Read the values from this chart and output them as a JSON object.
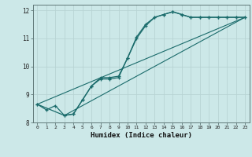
{
  "title": "",
  "xlabel": "Humidex (Indice chaleur)",
  "bg_color": "#cce8e8",
  "grid_color": "#b8d4d4",
  "line_color": "#1a6b6b",
  "xlim": [
    -0.5,
    23.5
  ],
  "ylim": [
    8,
    12.2
  ],
  "yticks": [
    8,
    9,
    10,
    11,
    12
  ],
  "xticks": [
    0,
    1,
    2,
    3,
    4,
    5,
    6,
    7,
    8,
    9,
    10,
    11,
    12,
    13,
    14,
    15,
    16,
    17,
    18,
    19,
    20,
    21,
    22,
    23
  ],
  "line1_x": [
    0,
    1,
    2,
    3,
    4,
    5,
    6,
    7,
    8,
    9,
    10,
    11,
    12,
    13,
    14,
    15,
    16,
    17,
    18,
    19,
    20,
    21,
    22,
    23
  ],
  "line1_y": [
    8.65,
    8.45,
    8.6,
    8.25,
    8.3,
    8.8,
    9.3,
    9.55,
    9.55,
    9.6,
    10.3,
    11.0,
    11.45,
    11.75,
    11.85,
    11.95,
    11.85,
    11.75,
    11.75,
    11.75,
    11.75,
    11.75,
    11.75,
    11.75
  ],
  "line2_x": [
    0,
    3,
    4,
    5,
    6,
    7,
    8,
    9,
    10,
    11,
    12,
    13,
    14,
    15,
    16,
    17,
    18,
    19,
    20,
    21,
    22,
    23
  ],
  "line2_y": [
    8.65,
    8.25,
    8.3,
    8.8,
    9.3,
    9.6,
    9.6,
    9.65,
    10.3,
    11.05,
    11.5,
    11.75,
    11.85,
    11.95,
    11.85,
    11.75,
    11.75,
    11.75,
    11.75,
    11.75,
    11.75,
    11.75
  ],
  "line3_x": [
    0,
    23
  ],
  "line3_y": [
    8.65,
    11.75
  ],
  "line4_x": [
    3,
    23
  ],
  "line4_y": [
    8.25,
    11.75
  ]
}
